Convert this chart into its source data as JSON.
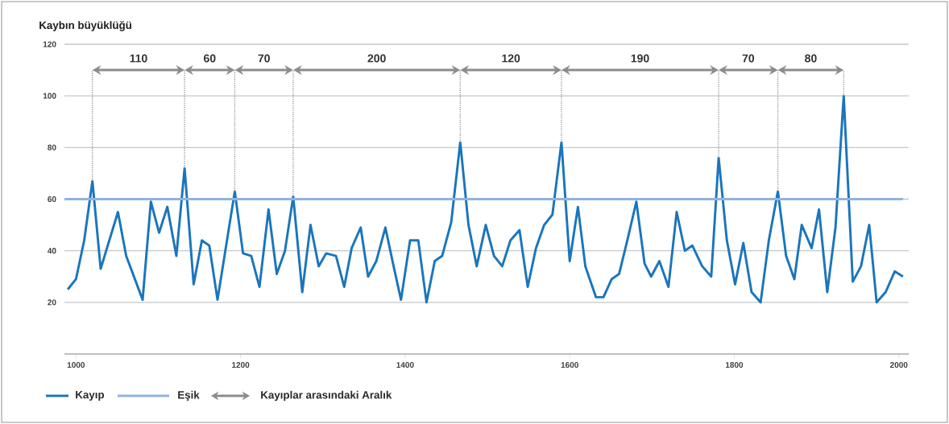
{
  "chart_data": {
    "type": "line",
    "ylabel": "Kaybın büyüklüğü",
    "x": [
      990,
      1000,
      1010,
      1020,
      1030,
      1051,
      1061,
      1081,
      1091,
      1101,
      1111,
      1122,
      1132,
      1143,
      1153,
      1162,
      1172,
      1193,
      1203,
      1213,
      1223,
      1234,
      1244,
      1254,
      1264,
      1275,
      1285,
      1295,
      1304,
      1316,
      1326,
      1335,
      1346,
      1355,
      1365,
      1376,
      1386,
      1395,
      1406,
      1416,
      1426,
      1436,
      1445,
      1456,
      1467,
      1477,
      1487,
      1498,
      1508,
      1518,
      1528,
      1539,
      1549,
      1559,
      1569,
      1579,
      1590,
      1600,
      1610,
      1619,
      1632,
      1641,
      1651,
      1660,
      1670,
      1681,
      1691,
      1699,
      1709,
      1720,
      1730,
      1740,
      1749,
      1761,
      1772,
      1781,
      1791,
      1801,
      1811,
      1821,
      1832,
      1842,
      1853,
      1863,
      1873,
      1882,
      1894,
      1903,
      1913,
      1923,
      1933,
      1944,
      1954,
      1964,
      1973,
      1984,
      1995,
      2005
    ],
    "series": [
      {
        "name": "Kayıp",
        "color": "#1a75bc",
        "values": [
          25,
          29,
          44,
          67,
          33,
          55,
          38,
          21,
          59,
          47,
          57,
          38,
          72,
          27,
          44,
          42,
          21,
          63,
          39,
          38,
          26,
          56,
          31,
          40,
          61,
          24,
          50,
          34,
          39,
          38,
          26,
          41,
          49,
          30,
          36,
          49,
          34,
          21,
          44,
          44,
          20,
          36,
          38,
          51,
          82,
          50,
          34,
          50,
          38,
          34,
          44,
          48,
          26,
          41,
          50,
          54,
          82,
          36,
          57,
          34,
          22,
          22,
          29,
          31,
          44,
          59,
          35,
          30,
          36,
          26,
          55,
          40,
          42,
          34,
          30,
          76,
          44,
          27,
          43,
          24,
          20,
          44,
          63,
          38,
          29,
          50,
          41,
          56,
          24,
          49,
          100,
          28,
          34,
          50,
          20,
          24,
          32,
          30
        ]
      }
    ],
    "xlim": [
      986,
      2012
    ],
    "ylim": [
      0,
      120
    ],
    "xticks": [
      1000,
      1200,
      1400,
      1600,
      1800,
      2000
    ],
    "yticks": [
      20,
      40,
      60,
      80,
      100,
      120
    ],
    "grid": "y",
    "legend": "bottom left",
    "marker": "none",
    "line_style": "solid",
    "ref_lines": [
      {
        "axis": "y",
        "value": 60,
        "label": "Eşik",
        "color": "#8fb4e3"
      },
      {
        "axis": "x",
        "value": 1020,
        "color": "#9a9a9a",
        "line_style": "dotted"
      },
      {
        "axis": "x",
        "value": 1132,
        "color": "#9a9a9a",
        "line_style": "dotted"
      },
      {
        "axis": "x",
        "value": 1193,
        "color": "#9a9a9a",
        "line_style": "dotted"
      },
      {
        "axis": "x",
        "value": 1264,
        "color": "#9a9a9a",
        "line_style": "dotted"
      },
      {
        "axis": "x",
        "value": 1467,
        "color": "#9a9a9a",
        "line_style": "dotted"
      },
      {
        "axis": "x",
        "value": 1590,
        "color": "#9a9a9a",
        "line_style": "dotted"
      },
      {
        "axis": "x",
        "value": 1781,
        "color": "#9a9a9a",
        "line_style": "dotted"
      },
      {
        "axis": "x",
        "value": 1853,
        "color": "#9a9a9a",
        "line_style": "dotted"
      },
      {
        "axis": "x",
        "value": 1933,
        "color": "#9a9a9a",
        "line_style": "dotted"
      }
    ],
    "annotations": [
      "110",
      "60",
      "70",
      "200",
      "120",
      "190",
      "70",
      "80",
      "Kayıplar arasındaki Aralık"
    ]
  }
}
